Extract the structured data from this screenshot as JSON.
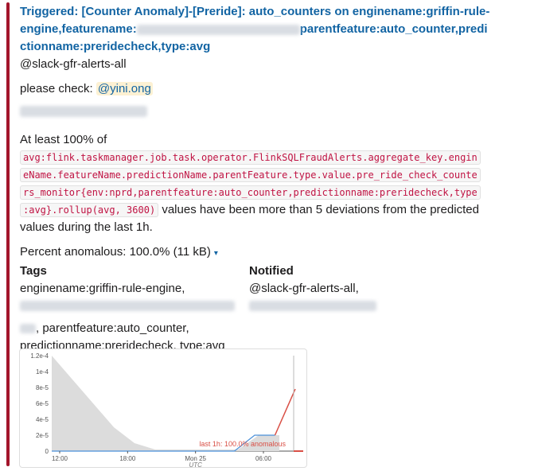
{
  "title": {
    "part1": "Triggered: [Counter Anomaly]-[Preride]: auto_counters on enginename:griffin-rule-engine,featurename:",
    "part2": "parentfeature:auto_counter,predi",
    "part3": "ctionname:preridecheck,type:avg"
  },
  "channel_mention": "@slack-gfr-alerts-all",
  "please_check_prefix": "please check:",
  "user_mention": "@yini.ong",
  "at_least_text": "At least 100% of",
  "metric_lines": [
    "avg:flink.taskmanager.job.task.operator.FlinkSQLFraudAlerts.aggregate_key.engin",
    "eName.featureName.predictionName.parentFeature.type.value.pre_ride_check_counte",
    "rs_monitor{env:nprd,parentfeature:auto_counter,predictionname:preridecheck,type",
    ":avg}.rollup(avg, 3600)"
  ],
  "metric_suffix": "values have been more than 5 deviations from the predicted",
  "metric_suffix2": "values during the last 1h.",
  "percent_anomalous": "Percent anomalous: 100.0% (11 kB)",
  "caret": "▾",
  "tags": {
    "header": "Tags",
    "line1": "enginename:griffin-rule-engine,",
    "line3": ", parentfeature:auto_counter,",
    "line4": "predictionname:preridecheck, type:avg"
  },
  "notified": {
    "header": "Notified",
    "line1": "@slack-gfr-alerts-all,"
  },
  "chart_data": {
    "type": "line",
    "y_ticks": [
      "0",
      "2e-5",
      "4e-5",
      "6e-5",
      "8e-5",
      "1e-4",
      "1.2e-4"
    ],
    "x_ticks": [
      "12:00",
      "18:00",
      "Mon 25",
      "06:00"
    ],
    "x_sublabel": "UTC",
    "annotation": "last 1h: 100.0% anomalous",
    "ylim": [
      0,
      0.00012
    ],
    "band_upper": [
      0.00012,
      9e-05,
      6e-05,
      3e-05,
      1e-05,
      2e-06,
      2e-06,
      2e-06,
      2e-06,
      2e-06,
      2e-05,
      2e-05
    ],
    "series": [
      {
        "values": [
          0,
          0,
          0,
          0,
          0,
          0,
          0,
          0,
          0,
          0,
          2e-05,
          2e-05,
          7.8e-05
        ],
        "color": "#1f77b4"
      }
    ],
    "colors": {
      "normal": "#4a90d9",
      "anomaly": "#d94f45",
      "band": "#dcdcdc"
    }
  }
}
